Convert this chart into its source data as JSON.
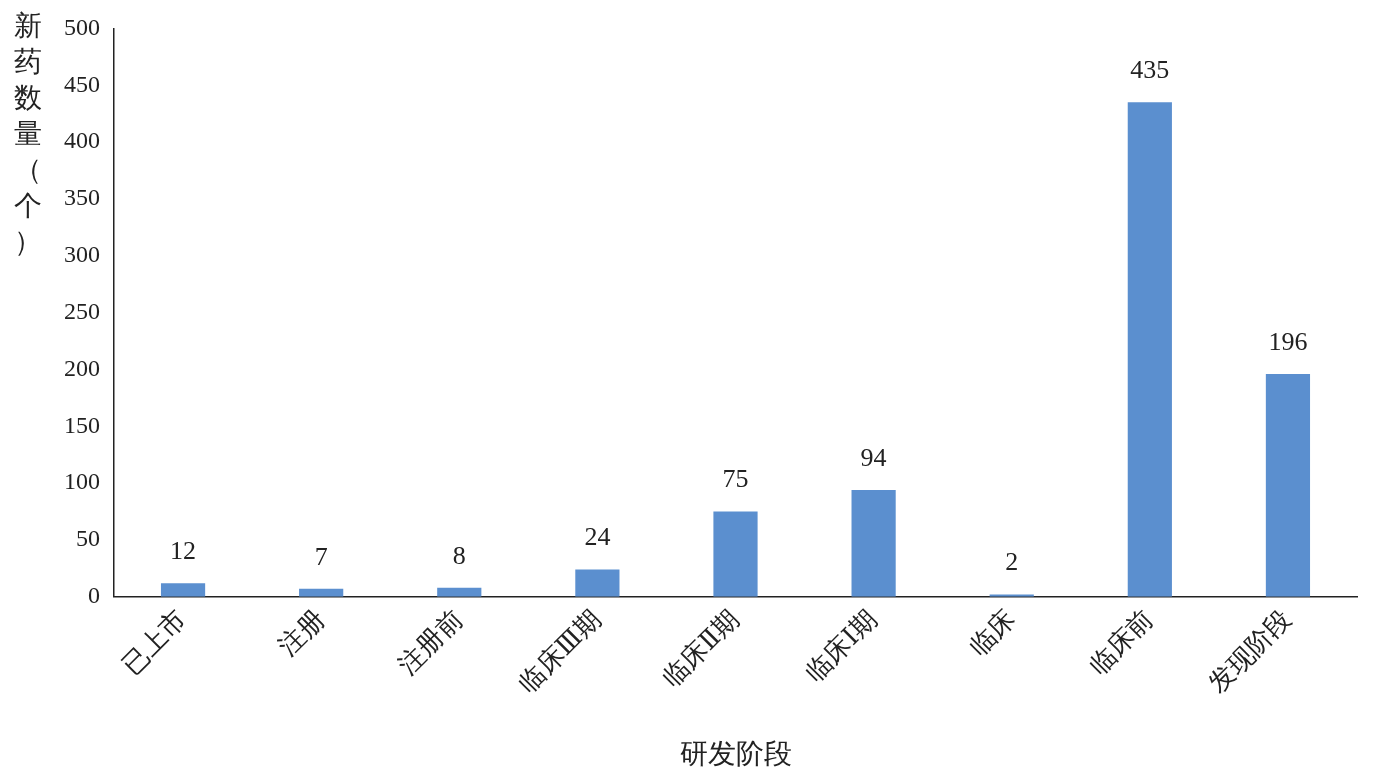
{
  "chart_data": {
    "type": "bar",
    "xlabel": "研发阶段",
    "ylabel": "新药数量（个）",
    "categories": [
      "已上市",
      "注册",
      "注册前",
      "临床Ⅲ期",
      "临床Ⅱ期",
      "临床Ⅰ期",
      "临床",
      "临床前",
      "发现阶段"
    ],
    "values": [
      12,
      7,
      8,
      24,
      75,
      94,
      2,
      435,
      196
    ],
    "color": "#5b8fcf",
    "ylim": [
      0,
      500
    ],
    "yticks": [
      0,
      50,
      100,
      150,
      200,
      250,
      300,
      350,
      400,
      450,
      500
    ],
    "grid": false,
    "legend": false,
    "data_labels": true
  }
}
